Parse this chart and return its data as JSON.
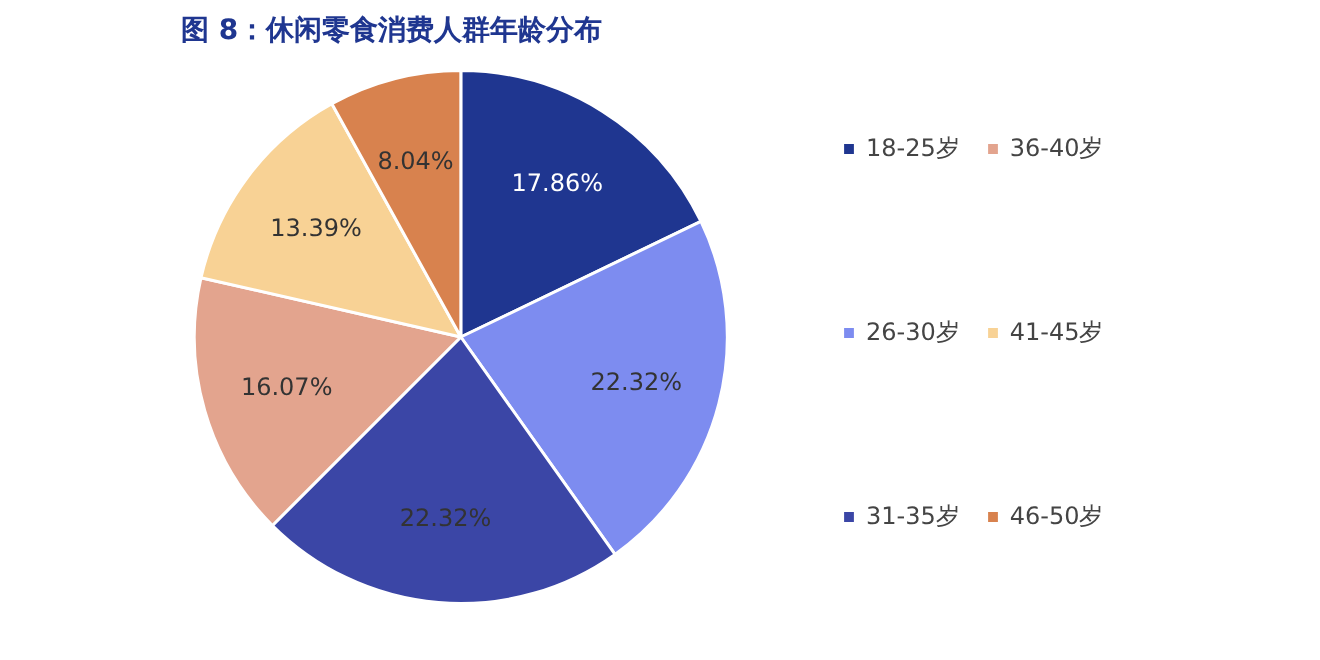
{
  "chart_data": {
    "type": "pie",
    "title": "图 8：休闲零食消费人群年龄分布",
    "categories": [
      "18-25岁",
      "26-30岁",
      "31-35岁",
      "36-40岁",
      "41-45岁",
      "46-50岁"
    ],
    "values": [
      17.86,
      22.32,
      22.32,
      16.07,
      13.39,
      8.04
    ],
    "colors": [
      "#1f3690",
      "#7d8cf0",
      "#3b46a6",
      "#e3a48e",
      "#f8d295",
      "#d8824e"
    ],
    "value_labels": [
      "17.86%",
      "22.32%",
      "22.32%",
      "16.07%",
      "13.39%",
      "8.04%"
    ],
    "legend": "right"
  }
}
